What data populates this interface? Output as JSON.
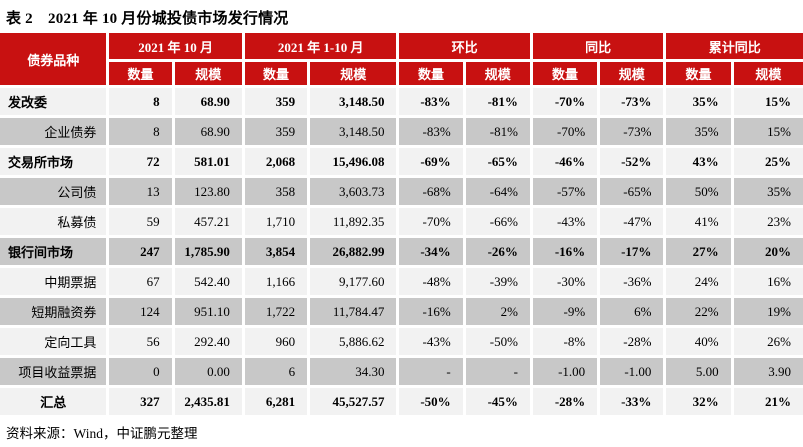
{
  "title": "表 2　2021 年 10 月份城投债市场发行情况",
  "source_note": "资料来源：Wind，中证鹏元整理",
  "colors": {
    "header_red": "#C81111",
    "row_light": "#F2F2F2",
    "row_dark": "#C8C8C8"
  },
  "table": {
    "bond_type_header": "债券品种",
    "group_headers": [
      "2021 年 10 月",
      "2021 年 1-10 月",
      "环比",
      "同比",
      "累计同比"
    ],
    "sub_headers": [
      "数量",
      "规模",
      "数量",
      "规模",
      "数量",
      "规模",
      "数量",
      "规模",
      "数量",
      "规模"
    ],
    "rows": [
      {
        "name": "发改委",
        "bold": true,
        "align": "left",
        "values": [
          "8",
          "68.90",
          "359",
          "3,148.50",
          "-83%",
          "-81%",
          "-70%",
          "-73%",
          "35%",
          "15%"
        ]
      },
      {
        "name": "企业债券",
        "bold": false,
        "align": "right",
        "values": [
          "8",
          "68.90",
          "359",
          "3,148.50",
          "-83%",
          "-81%",
          "-70%",
          "-73%",
          "35%",
          "15%"
        ]
      },
      {
        "name": "交易所市场",
        "bold": true,
        "align": "left",
        "values": [
          "72",
          "581.01",
          "2,068",
          "15,496.08",
          "-69%",
          "-65%",
          "-46%",
          "-52%",
          "43%",
          "25%"
        ]
      },
      {
        "name": "公司债",
        "bold": false,
        "align": "right",
        "values": [
          "13",
          "123.80",
          "358",
          "3,603.73",
          "-68%",
          "-64%",
          "-57%",
          "-65%",
          "50%",
          "35%"
        ]
      },
      {
        "name": "私募债",
        "bold": false,
        "align": "right",
        "values": [
          "59",
          "457.21",
          "1,710",
          "11,892.35",
          "-70%",
          "-66%",
          "-43%",
          "-47%",
          "41%",
          "23%"
        ]
      },
      {
        "name": "银行间市场",
        "bold": true,
        "align": "left",
        "values": [
          "247",
          "1,785.90",
          "3,854",
          "26,882.99",
          "-34%",
          "-26%",
          "-16%",
          "-17%",
          "27%",
          "20%"
        ]
      },
      {
        "name": "中期票据",
        "bold": false,
        "align": "right",
        "values": [
          "67",
          "542.40",
          "1,166",
          "9,177.60",
          "-48%",
          "-39%",
          "-30%",
          "-36%",
          "24%",
          "16%"
        ]
      },
      {
        "name": "短期融资券",
        "bold": false,
        "align": "right",
        "values": [
          "124",
          "951.10",
          "1,722",
          "11,784.47",
          "-16%",
          "2%",
          "-9%",
          "6%",
          "22%",
          "19%"
        ]
      },
      {
        "name": "定向工具",
        "bold": false,
        "align": "right",
        "values": [
          "56",
          "292.40",
          "960",
          "5,886.62",
          "-43%",
          "-50%",
          "-8%",
          "-28%",
          "40%",
          "26%"
        ]
      },
      {
        "name": "项目收益票据",
        "bold": false,
        "align": "right",
        "values": [
          "0",
          "0.00",
          "6",
          "34.30",
          "-",
          "-",
          "-1.00",
          "-1.00",
          "5.00",
          "3.90"
        ]
      },
      {
        "name": "汇总",
        "bold": true,
        "align": "center",
        "values": [
          "327",
          "2,435.81",
          "6,281",
          "45,527.57",
          "-50%",
          "-45%",
          "-28%",
          "-33%",
          "32%",
          "21%"
        ]
      }
    ]
  }
}
